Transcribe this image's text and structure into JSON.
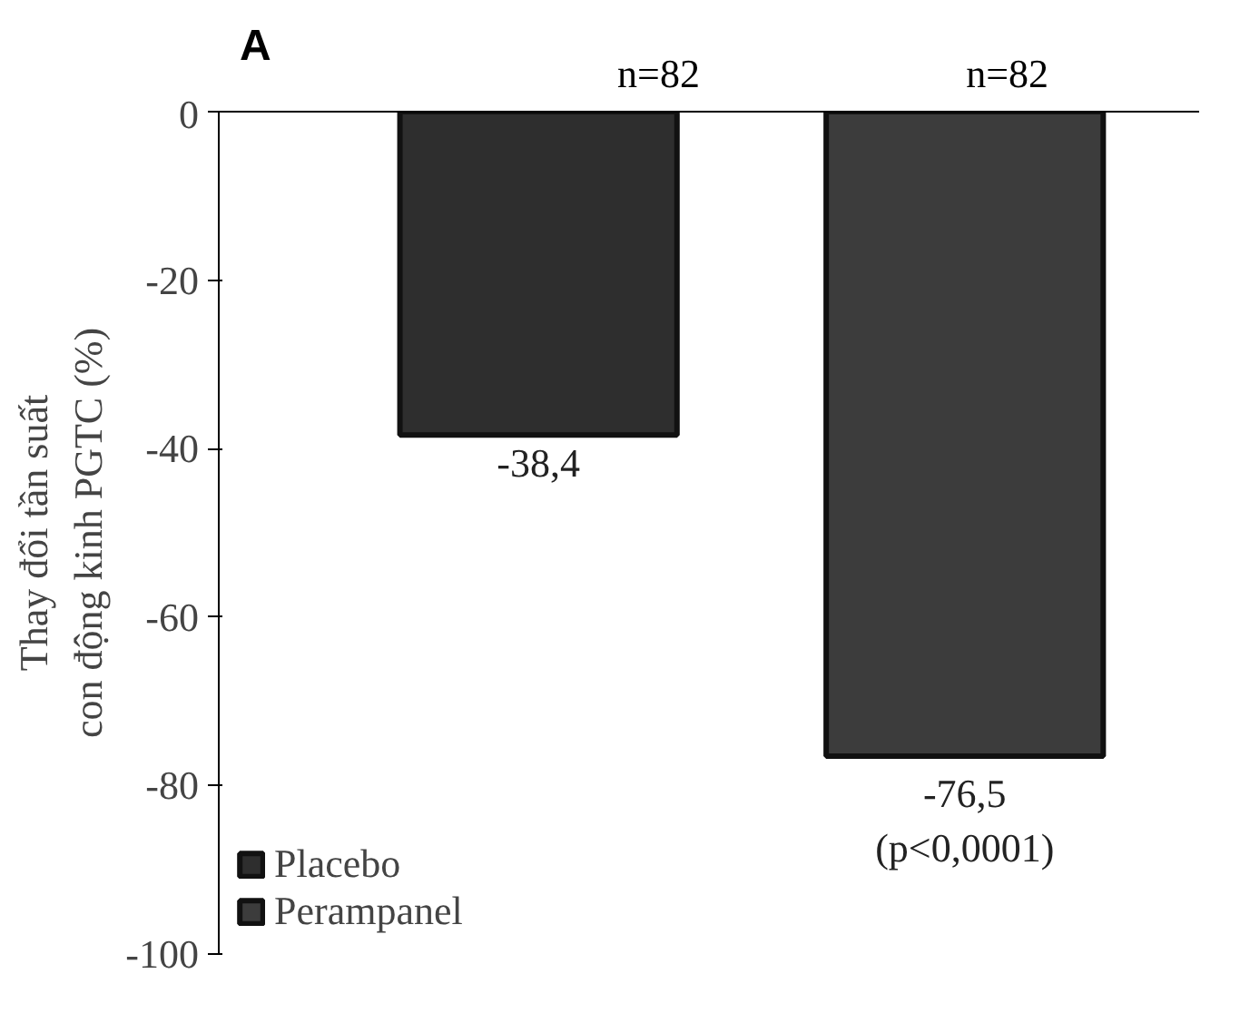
{
  "chart_data": {
    "type": "bar",
    "ylabel": "Thay đổi tần suất\ncon động kinh PGTC (%)",
    "categories": [
      null,
      null
    ],
    "series": [
      {
        "name": "Placebo",
        "color": "#2e2e2e",
        "values": [
          -38.4,
          null
        ],
        "value_labels": [
          "-38,4",
          null
        ]
      },
      {
        "name": "Perampanel",
        "color": "#3c3c3c",
        "values": [
          null,
          -76.5
        ],
        "value_labels": [
          null,
          "-76,5\n(p<0,0001)"
        ]
      }
    ],
    "ylim": [
      -100,
      0
    ],
    "yticks": [
      0,
      -20,
      -40,
      -60,
      -80,
      -100
    ],
    "annotations": [
      "A",
      "n=82",
      "n=82"
    ],
    "grid": false,
    "legend": "bottom left"
  }
}
